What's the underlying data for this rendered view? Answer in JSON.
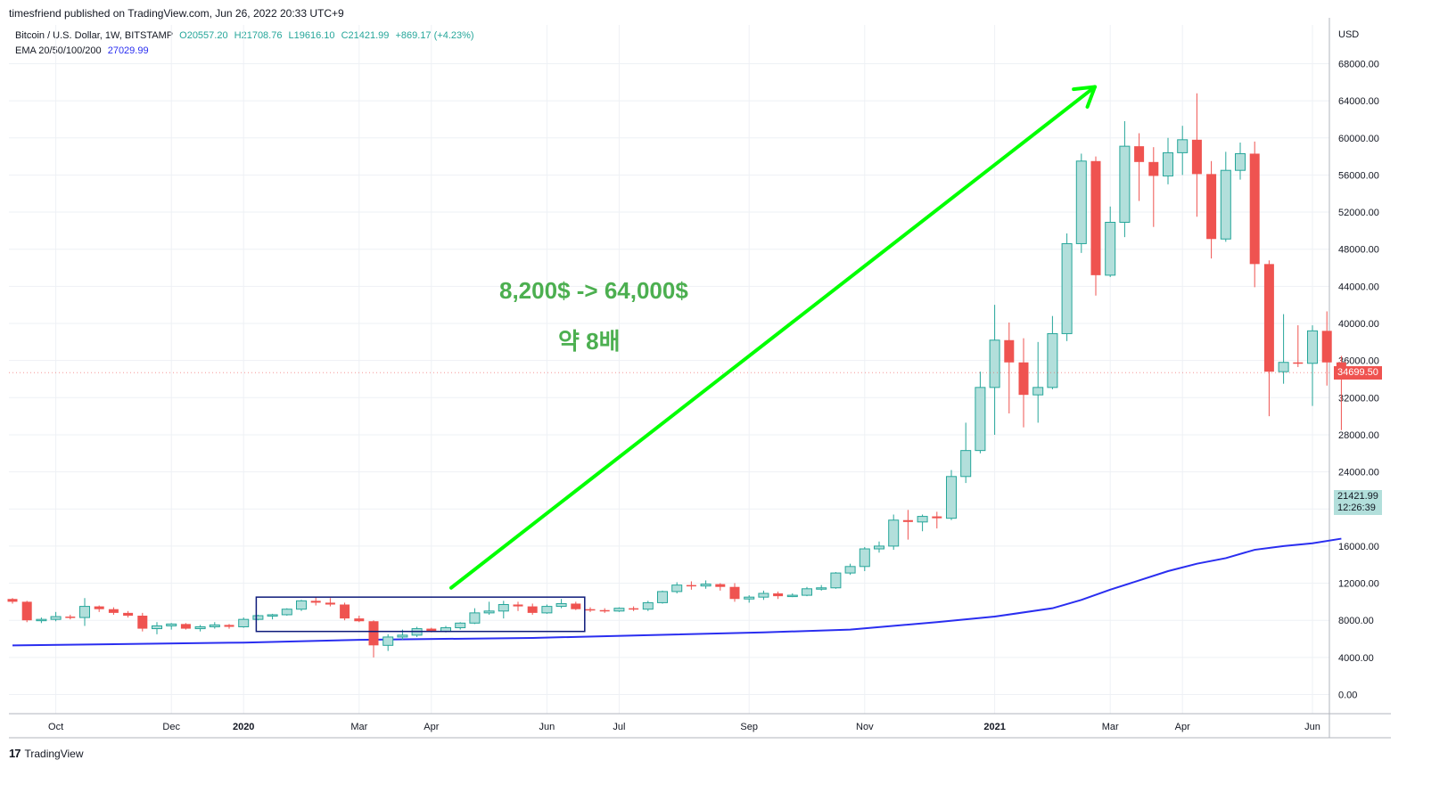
{
  "header": {
    "publisher": "timesfriend published on TradingView.com, Jun 26, 2022 20:33 UTC+9"
  },
  "legend": {
    "symbol": "Bitcoin / U.S. Dollar, 1W, BITSTAMP",
    "open": "O20557.20",
    "high": "H21708.76",
    "low": "L19616.10",
    "close": "C21421.99",
    "change": "+869.17 (+4.23%)",
    "ema_label": "EMA 20/50/100/200",
    "ema_value": "27029.99"
  },
  "annotations": {
    "line1": "8,200$ -> 64,000$",
    "line2": "약 8배"
  },
  "price_tags": {
    "last": "34699.50",
    "current": "21421.99",
    "countdown": "12:26:39"
  },
  "footer": {
    "brand": "TradingView",
    "logo_glyph": "17"
  },
  "colors": {
    "up": "#26a69a",
    "up_fill": "#b2dfdb",
    "down": "#ef5350",
    "ema": "#2a2ef0",
    "arrow": "#00ff00",
    "box": "#0d1a7a",
    "annotation": "#4caf50",
    "grid": "#eef1f5"
  },
  "chart_data": {
    "type": "candlestick",
    "title": "Bitcoin / U.S. Dollar, 1W, BITSTAMP",
    "ylabel": "USD",
    "ylim": [
      -2000,
      70000
    ],
    "y_ticks": [
      0,
      4000,
      8000,
      12000,
      16000,
      20000,
      24000,
      28000,
      32000,
      36000,
      40000,
      44000,
      48000,
      52000,
      56000,
      60000,
      64000,
      68000
    ],
    "y_tick_labels": [
      "0.00",
      "4000.00",
      "8000.00",
      "12000.00",
      "16000.00",
      "20000.00",
      "24000.00",
      "28000.00",
      "32000.00",
      "36000.00",
      "40000.00",
      "44000.00",
      "48000.00",
      "52000.00",
      "56000.00",
      "60000.00",
      "64000.00",
      "68000.00"
    ],
    "x_tick_labels": [
      {
        "label": "Oct",
        "week": 3,
        "bold": false
      },
      {
        "label": "Dec",
        "week": 11,
        "bold": false
      },
      {
        "label": "2020",
        "week": 16,
        "bold": true
      },
      {
        "label": "Mar",
        "week": 24,
        "bold": false
      },
      {
        "label": "Apr",
        "week": 29,
        "bold": false
      },
      {
        "label": "Jun",
        "week": 37,
        "bold": false
      },
      {
        "label": "Jul",
        "week": 42,
        "bold": false
      },
      {
        "label": "Sep",
        "week": 51,
        "bold": false
      },
      {
        "label": "Nov",
        "week": 59,
        "bold": false
      },
      {
        "label": "2021",
        "week": 68,
        "bold": true
      },
      {
        "label": "Mar",
        "week": 76,
        "bold": false
      },
      {
        "label": "Apr",
        "week": 81,
        "bold": false
      },
      {
        "label": "Jun",
        "week": 90,
        "bold": false
      }
    ],
    "candles": [
      [
        10300,
        10400,
        9800,
        10000
      ],
      [
        10000,
        10100,
        7800,
        8000
      ],
      [
        8000,
        8300,
        7700,
        8100
      ],
      [
        8100,
        8900,
        7900,
        8400
      ],
      [
        8400,
        8600,
        8100,
        8300
      ],
      [
        8300,
        10400,
        7400,
        9500
      ],
      [
        9500,
        9600,
        8900,
        9200
      ],
      [
        9200,
        9400,
        8600,
        8800
      ],
      [
        8800,
        9000,
        8300,
        8500
      ],
      [
        8500,
        8800,
        6800,
        7100
      ],
      [
        7100,
        7800,
        6500,
        7400
      ],
      [
        7400,
        7700,
        7000,
        7600
      ],
      [
        7600,
        7700,
        7000,
        7100
      ],
      [
        7100,
        7500,
        6800,
        7300
      ],
      [
        7300,
        7800,
        7100,
        7500
      ],
      [
        7500,
        7600,
        7100,
        7300
      ],
      [
        7300,
        8300,
        7200,
        8100
      ],
      [
        8100,
        8600,
        8000,
        8500
      ],
      [
        8500,
        8700,
        8100,
        8600
      ],
      [
        8600,
        9300,
        8500,
        9200
      ],
      [
        9200,
        10200,
        9000,
        10100
      ],
      [
        10100,
        10500,
        9600,
        9900
      ],
      [
        9900,
        10400,
        9500,
        9700
      ],
      [
        9700,
        9900,
        8000,
        8200
      ],
      [
        8200,
        8500,
        7800,
        7900
      ],
      [
        7900,
        8000,
        4000,
        5300
      ],
      [
        5300,
        6500,
        4700,
        6200
      ],
      [
        6200,
        7000,
        5900,
        6400
      ],
      [
        6400,
        7300,
        6200,
        7100
      ],
      [
        7100,
        7200,
        6700,
        6800
      ],
      [
        6800,
        7400,
        6700,
        7200
      ],
      [
        7200,
        7800,
        7000,
        7700
      ],
      [
        7700,
        9300,
        7600,
        8800
      ],
      [
        8800,
        10000,
        8600,
        9000
      ],
      [
        9000,
        10100,
        8200,
        9700
      ],
      [
        9700,
        10000,
        9000,
        9500
      ],
      [
        9500,
        9800,
        8600,
        8800
      ],
      [
        8800,
        9700,
        8700,
        9500
      ],
      [
        9500,
        10300,
        9300,
        9800
      ],
      [
        9800,
        10000,
        9100,
        9200
      ],
      [
        9200,
        9400,
        8900,
        9100
      ],
      [
        9100,
        9300,
        8800,
        9000
      ],
      [
        9000,
        9400,
        8900,
        9300
      ],
      [
        9300,
        9500,
        9000,
        9200
      ],
      [
        9200,
        10100,
        9000,
        9900
      ],
      [
        9900,
        11200,
        9800,
        11100
      ],
      [
        11100,
        12100,
        10900,
        11800
      ],
      [
        11800,
        12200,
        11300,
        11700
      ],
      [
        11700,
        12300,
        11400,
        11900
      ],
      [
        11900,
        12000,
        11200,
        11600
      ],
      [
        11600,
        12000,
        10000,
        10300
      ],
      [
        10300,
        10700,
        9900,
        10500
      ],
      [
        10500,
        11200,
        10200,
        10900
      ],
      [
        10900,
        11100,
        10300,
        10600
      ],
      [
        10600,
        10900,
        10500,
        10700
      ],
      [
        10700,
        11600,
        10600,
        11400
      ],
      [
        11400,
        11800,
        11200,
        11500
      ],
      [
        11500,
        13200,
        11400,
        13100
      ],
      [
        13100,
        14100,
        12900,
        13800
      ],
      [
        13800,
        15900,
        13300,
        15700
      ],
      [
        15700,
        16500,
        15300,
        16000
      ],
      [
        16000,
        19400,
        15600,
        18800
      ],
      [
        18800,
        19900,
        16700,
        18600
      ],
      [
        18600,
        19400,
        17600,
        19200
      ],
      [
        19200,
        19700,
        17900,
        19000
      ],
      [
        19000,
        24200,
        18800,
        23500
      ],
      [
        23500,
        29300,
        22800,
        26300
      ],
      [
        26300,
        34800,
        26000,
        33100
      ],
      [
        33100,
        42000,
        28000,
        38200
      ],
      [
        38200,
        40100,
        30300,
        35800
      ],
      [
        35800,
        38400,
        28800,
        32300
      ],
      [
        32300,
        38000,
        29300,
        33100
      ],
      [
        33100,
        40800,
        32900,
        38900
      ],
      [
        38900,
        49700,
        38100,
        48600
      ],
      [
        48600,
        58300,
        47600,
        57500
      ],
      [
        57500,
        58000,
        43000,
        45200
      ],
      [
        45200,
        52600,
        45000,
        50900
      ],
      [
        50900,
        61800,
        49300,
        59100
      ],
      [
        59100,
        60500,
        53200,
        57400
      ],
      [
        57400,
        59000,
        50400,
        55900
      ],
      [
        55900,
        60000,
        55000,
        58400
      ],
      [
        58400,
        61300,
        56000,
        59800
      ],
      [
        59800,
        64800,
        51500,
        56100
      ],
      [
        56100,
        57500,
        47000,
        49100
      ],
      [
        49100,
        58500,
        48800,
        56500
      ],
      [
        56500,
        59500,
        55500,
        58300
      ],
      [
        58300,
        59600,
        43900,
        46400
      ],
      [
        46400,
        46800,
        30000,
        34800
      ],
      [
        34800,
        41000,
        33500,
        35800
      ],
      [
        35800,
        39800,
        35300,
        35700
      ],
      [
        35700,
        39800,
        31100,
        39200
      ],
      [
        39200,
        41300,
        33300,
        35800
      ],
      [
        35800,
        36500,
        28500,
        34700
      ]
    ],
    "ema": [
      [
        0,
        5300
      ],
      [
        16,
        5600
      ],
      [
        24,
        5900
      ],
      [
        36,
        6100
      ],
      [
        44,
        6400
      ],
      [
        52,
        6700
      ],
      [
        58,
        7000
      ],
      [
        64,
        7800
      ],
      [
        68,
        8400
      ],
      [
        72,
        9300
      ],
      [
        74,
        10200
      ],
      [
        76,
        11300
      ],
      [
        78,
        12300
      ],
      [
        80,
        13300
      ],
      [
        82,
        14100
      ],
      [
        84,
        14700
      ],
      [
        86,
        15600
      ],
      [
        88,
        16000
      ],
      [
        90,
        16300
      ],
      [
        92,
        16800
      ]
    ],
    "box": {
      "from_week": 17,
      "to_week": 39,
      "low": 6800,
      "high": 10500
    },
    "arrow": {
      "from_week": 30,
      "from_value": 11500,
      "to_week": 75,
      "to_value": 65500
    },
    "last_price": 34699.5,
    "current_price": 21421.99
  }
}
